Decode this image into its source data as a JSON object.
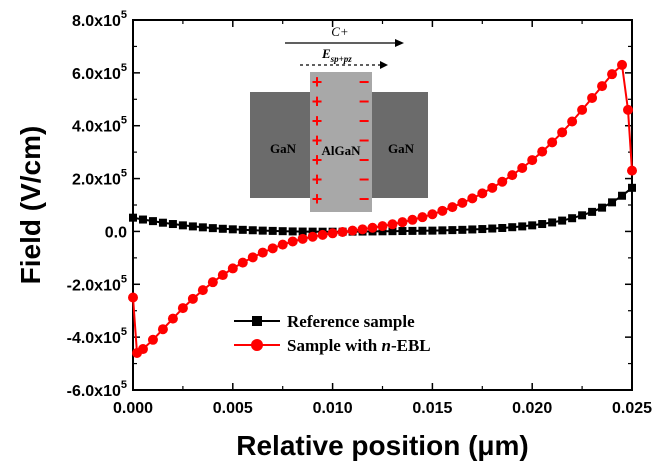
{
  "chart_data": {
    "type": "line",
    "xlabel": "Relative position (μm)",
    "ylabel": "Field (V/cm)",
    "xlim": [
      0,
      0.025
    ],
    "ylim": [
      -600000,
      800000
    ],
    "x_ticks": [
      "0.000",
      "0.005",
      "0.010",
      "0.015",
      "0.020",
      "0.025"
    ],
    "y_ticks": [
      {
        "mantissa": "8.0x10",
        "exp": "5"
      },
      {
        "mantissa": "6.0x10",
        "exp": "5"
      },
      {
        "mantissa": "4.0x10",
        "exp": "5"
      },
      {
        "mantissa": "2.0x10",
        "exp": "5"
      },
      {
        "mantissa": "0.0",
        "exp": ""
      },
      {
        "mantissa": "-2.0x10",
        "exp": "5"
      },
      {
        "mantissa": "-4.0x10",
        "exp": "5"
      },
      {
        "mantissa": "-6.0x10",
        "exp": "5"
      }
    ],
    "legend_position": "lower-center",
    "series": [
      {
        "name": "Reference sample",
        "legend_prefix": "Reference sample",
        "legend_italic": "",
        "legend_suffix": "",
        "color": "#000000",
        "marker": "square",
        "x": [
          0.0,
          0.0005,
          0.001,
          0.0015,
          0.002,
          0.0025,
          0.003,
          0.0035,
          0.004,
          0.0045,
          0.005,
          0.0055,
          0.006,
          0.0065,
          0.007,
          0.0075,
          0.008,
          0.0085,
          0.009,
          0.0095,
          0.01,
          0.0105,
          0.011,
          0.0115,
          0.012,
          0.0125,
          0.013,
          0.0135,
          0.014,
          0.0145,
          0.015,
          0.0155,
          0.016,
          0.0165,
          0.017,
          0.0175,
          0.018,
          0.0185,
          0.019,
          0.0195,
          0.02,
          0.0205,
          0.021,
          0.0215,
          0.022,
          0.0225,
          0.023,
          0.0235,
          0.024,
          0.0245,
          0.025
        ],
        "y": [
          52000,
          45000,
          39000,
          33000,
          28000,
          23000,
          19000,
          15500,
          12500,
          10000,
          8000,
          6000,
          4500,
          3000,
          2000,
          1000,
          0,
          -500,
          -800,
          -1000,
          -1000,
          -1000,
          -800,
          -500,
          0,
          500,
          1000,
          1500,
          2000,
          2500,
          3000,
          4000,
          5000,
          6000,
          7500,
          9000,
          11000,
          13000,
          16000,
          19000,
          23000,
          28000,
          34000,
          41000,
          50000,
          61000,
          74000,
          90000,
          110000,
          135000,
          165000
        ]
      },
      {
        "name": "Sample with n-EBL",
        "legend_prefix": "Sample with ",
        "legend_italic": "n",
        "legend_suffix": "-EBL",
        "color": "#ff0000",
        "marker": "circle",
        "x": [
          0.0,
          0.0002,
          0.0005,
          0.001,
          0.0015,
          0.002,
          0.0025,
          0.003,
          0.0035,
          0.004,
          0.0045,
          0.005,
          0.0055,
          0.006,
          0.0065,
          0.007,
          0.0075,
          0.008,
          0.0085,
          0.009,
          0.0095,
          0.01,
          0.0105,
          0.011,
          0.0115,
          0.012,
          0.0125,
          0.013,
          0.0135,
          0.014,
          0.0145,
          0.015,
          0.0155,
          0.016,
          0.0165,
          0.017,
          0.0175,
          0.018,
          0.0185,
          0.019,
          0.0195,
          0.02,
          0.0205,
          0.021,
          0.0215,
          0.022,
          0.0225,
          0.023,
          0.0235,
          0.024,
          0.0245,
          0.0248,
          0.025
        ],
        "y": [
          -250000,
          -460000,
          -445000,
          -410000,
          -370000,
          -330000,
          -290000,
          -255000,
          -222000,
          -192000,
          -165000,
          -140000,
          -118000,
          -98000,
          -80000,
          -64000,
          -50000,
          -38000,
          -28000,
          -20000,
          -13000,
          -7000,
          -2000,
          3000,
          8000,
          14000,
          20000,
          27000,
          35000,
          44000,
          54000,
          65000,
          78000,
          92000,
          108000,
          125000,
          144000,
          165000,
          188000,
          213000,
          240000,
          270000,
          302000,
          337000,
          375000,
          416000,
          460000,
          505000,
          550000,
          595000,
          630000,
          460000,
          230000
        ]
      }
    ],
    "inset": {
      "left_label": "GaN",
      "center_label": "AlGaN",
      "right_label": "GaN",
      "arrow_top_label": "C+",
      "arrow_sub_label_main": "E",
      "arrow_sub_label_sub": "sp+pz",
      "plus_symbol": "+",
      "minus_symbol": "−"
    }
  }
}
